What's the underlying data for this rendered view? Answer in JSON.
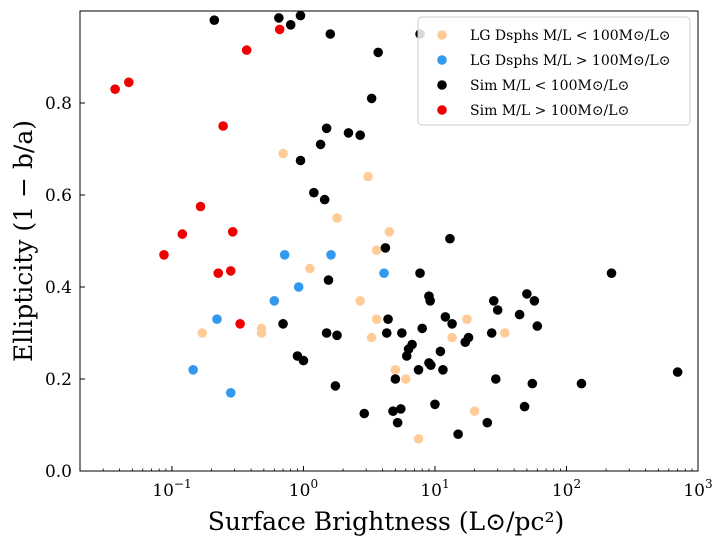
{
  "chart_data": {
    "type": "scatter",
    "xscale": "log",
    "xlim": [
      0.02,
      1000
    ],
    "ylim": [
      0.0,
      1.0
    ],
    "xlabel": "Surface Brightness (L⊙/pc²)",
    "ylabel": "Ellipticity (1 − b/a)",
    "xticks": [
      {
        "value": 0.1,
        "base": "10",
        "exp": "−1"
      },
      {
        "value": 1,
        "base": "10",
        "exp": "0"
      },
      {
        "value": 10,
        "base": "10",
        "exp": "1"
      },
      {
        "value": 100,
        "base": "10",
        "exp": "2"
      },
      {
        "value": 1000,
        "base": "10",
        "exp": "3"
      }
    ],
    "yticks": [
      {
        "value": 0.0,
        "label": "0.0"
      },
      {
        "value": 0.2,
        "label": "0.2"
      },
      {
        "value": 0.4,
        "label": "0.4"
      },
      {
        "value": 0.6,
        "label": "0.6"
      },
      {
        "value": 0.8,
        "label": "0.8"
      }
    ],
    "legend_position": "top-right",
    "series": [
      {
        "name": "LG Dsphs M/L < 100M⊙/L⊙",
        "color": "#ffcc99",
        "points": [
          [
            0.17,
            0.3
          ],
          [
            0.48,
            0.31
          ],
          [
            0.48,
            0.3
          ],
          [
            0.7,
            0.69
          ],
          [
            1.12,
            0.44
          ],
          [
            1.8,
            0.55
          ],
          [
            2.7,
            0.37
          ],
          [
            3.1,
            0.64
          ],
          [
            3.3,
            0.29
          ],
          [
            3.6,
            0.48
          ],
          [
            3.6,
            0.33
          ],
          [
            4.5,
            0.52
          ],
          [
            5.0,
            0.22
          ],
          [
            6.0,
            0.2
          ],
          [
            7.5,
            0.07
          ],
          [
            13.5,
            0.29
          ],
          [
            17.5,
            0.33
          ],
          [
            20,
            0.13
          ],
          [
            34,
            0.3
          ]
        ]
      },
      {
        "name": "LG Dsphs M/L > 100M⊙/L⊙",
        "color": "#3399ee",
        "points": [
          [
            0.145,
            0.22
          ],
          [
            0.22,
            0.33
          ],
          [
            0.28,
            0.17
          ],
          [
            0.6,
            0.37
          ],
          [
            0.72,
            0.47
          ],
          [
            0.92,
            0.4
          ],
          [
            1.62,
            0.47
          ],
          [
            4.1,
            0.43
          ]
        ]
      },
      {
        "name": "Sim M/L < 100M⊙/L⊙",
        "color": "#000000",
        "points": [
          [
            0.21,
            0.98
          ],
          [
            0.65,
            0.985
          ],
          [
            0.8,
            0.97
          ],
          [
            0.95,
            0.99
          ],
          [
            1.6,
            0.95
          ],
          [
            3.7,
            0.91
          ],
          [
            7.7,
            0.95
          ],
          [
            3.3,
            0.81
          ],
          [
            1.5,
            0.745
          ],
          [
            2.2,
            0.735
          ],
          [
            2.7,
            0.73
          ],
          [
            1.35,
            0.71
          ],
          [
            0.95,
            0.675
          ],
          [
            1.2,
            0.605
          ],
          [
            1.45,
            0.59
          ],
          [
            13,
            0.505
          ],
          [
            4.2,
            0.485
          ],
          [
            7.7,
            0.43
          ],
          [
            220,
            0.43
          ],
          [
            9,
            0.38
          ],
          [
            9.2,
            0.37
          ],
          [
            28,
            0.37
          ],
          [
            50,
            0.385
          ],
          [
            57,
            0.37
          ],
          [
            0.7,
            0.32
          ],
          [
            4.4,
            0.33
          ],
          [
            12,
            0.335
          ],
          [
            13.5,
            0.32
          ],
          [
            44,
            0.34
          ],
          [
            60,
            0.315
          ],
          [
            30,
            0.35
          ],
          [
            1.55,
            0.415
          ],
          [
            1.5,
            0.3
          ],
          [
            1.8,
            0.295
          ],
          [
            4.3,
            0.3
          ],
          [
            5.6,
            0.3
          ],
          [
            8,
            0.31
          ],
          [
            18,
            0.29
          ],
          [
            27,
            0.3
          ],
          [
            17,
            0.28
          ],
          [
            6.3,
            0.265
          ],
          [
            6.7,
            0.275
          ],
          [
            6.1,
            0.25
          ],
          [
            0.9,
            0.25
          ],
          [
            1.0,
            0.24
          ],
          [
            7.5,
            0.22
          ],
          [
            9,
            0.235
          ],
          [
            9.3,
            0.23
          ],
          [
            11,
            0.26
          ],
          [
            11.5,
            0.22
          ],
          [
            5.0,
            0.2
          ],
          [
            29,
            0.2
          ],
          [
            55,
            0.19
          ],
          [
            130,
            0.19
          ],
          [
            700,
            0.215
          ],
          [
            1.75,
            0.185
          ],
          [
            10,
            0.145
          ],
          [
            5.5,
            0.135
          ],
          [
            4.8,
            0.13
          ],
          [
            2.9,
            0.125
          ],
          [
            48,
            0.14
          ],
          [
            5.2,
            0.105
          ],
          [
            15,
            0.08
          ],
          [
            25,
            0.105
          ]
        ]
      },
      {
        "name": "Sim M/L > 100M⊙/L⊙",
        "color": "#ee0000",
        "points": [
          [
            0.037,
            0.83
          ],
          [
            0.047,
            0.845
          ],
          [
            0.37,
            0.915
          ],
          [
            0.66,
            0.96
          ],
          [
            0.245,
            0.75
          ],
          [
            0.165,
            0.575
          ],
          [
            0.12,
            0.515
          ],
          [
            0.29,
            0.52
          ],
          [
            0.087,
            0.47
          ],
          [
            0.28,
            0.435
          ],
          [
            0.225,
            0.43
          ],
          [
            0.33,
            0.32
          ]
        ]
      }
    ]
  }
}
